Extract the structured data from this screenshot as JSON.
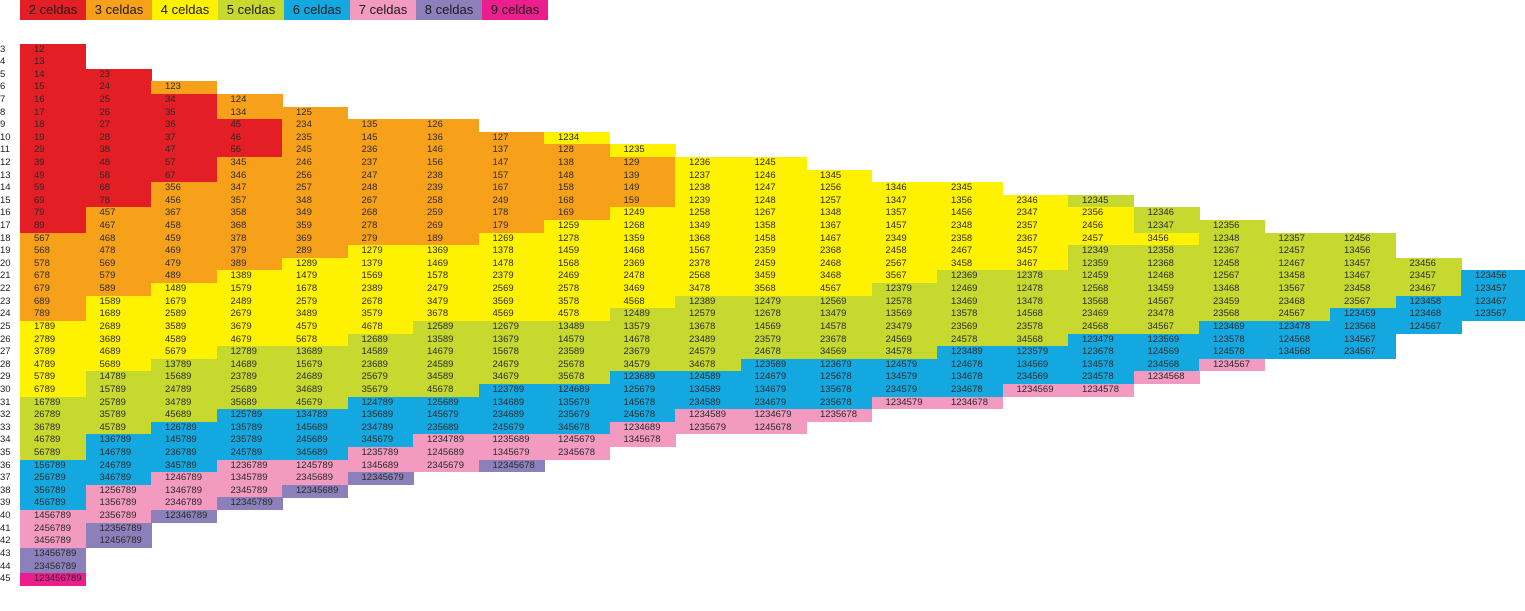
{
  "legend": [
    {
      "label": "2 celdas",
      "color": "#e31e24"
    },
    {
      "label": "3 celdas",
      "color": "#f7a11a"
    },
    {
      "label": "4 celdas",
      "color": "#fff200"
    },
    {
      "label": "5 celdas",
      "color": "#c7d92f"
    },
    {
      "label": "6 celdas",
      "color": "#14a8e0"
    },
    {
      "label": "7 celdas",
      "color": "#f39ac0"
    },
    {
      "label": "8 celdas",
      "color": "#8c80bb"
    },
    {
      "label": "9 celdas",
      "color": "#ec1d8d"
    }
  ],
  "rows": [
    {
      "sum": "3",
      "cells": [
        "12"
      ]
    },
    {
      "sum": "4",
      "cells": [
        "13"
      ]
    },
    {
      "sum": "5",
      "cells": [
        "14",
        "23"
      ]
    },
    {
      "sum": "6",
      "cells": [
        "15",
        "24",
        "123"
      ]
    },
    {
      "sum": "7",
      "cells": [
        "16",
        "25",
        "34",
        "124"
      ]
    },
    {
      "sum": "8",
      "cells": [
        "17",
        "26",
        "35",
        "134",
        "125"
      ]
    },
    {
      "sum": "9",
      "cells": [
        "18",
        "27",
        "36",
        "45",
        "234",
        "135",
        "126"
      ]
    },
    {
      "sum": "10",
      "cells": [
        "19",
        "28",
        "37",
        "46",
        "235",
        "145",
        "136",
        "127",
        "1234"
      ]
    },
    {
      "sum": "11",
      "cells": [
        "29",
        "38",
        "47",
        "56",
        "245",
        "236",
        "146",
        "137",
        "128",
        "1235"
      ]
    },
    {
      "sum": "12",
      "cells": [
        "39",
        "48",
        "57",
        "345",
        "246",
        "237",
        "156",
        "147",
        "138",
        "129",
        "1236",
        "1245"
      ]
    },
    {
      "sum": "13",
      "cells": [
        "49",
        "58",
        "67",
        "346",
        "256",
        "247",
        "238",
        "157",
        "148",
        "139",
        "1237",
        "1246",
        "1345"
      ]
    },
    {
      "sum": "14",
      "cells": [
        "59",
        "68",
        "356",
        "347",
        "257",
        "248",
        "239",
        "167",
        "158",
        "149",
        "1238",
        "1247",
        "1256",
        "1346",
        "2345"
      ]
    },
    {
      "sum": "15",
      "cells": [
        "69",
        "78",
        "456",
        "357",
        "348",
        "267",
        "258",
        "249",
        "168",
        "159",
        "1239",
        "1248",
        "1257",
        "1347",
        "1356",
        "2346",
        "12345"
      ]
    },
    {
      "sum": "16",
      "cells": [
        "79",
        "457",
        "367",
        "358",
        "349",
        "268",
        "259",
        "178",
        "169",
        "1249",
        "1258",
        "1267",
        "1348",
        "1357",
        "1456",
        "2347",
        "2356",
        "12346"
      ]
    },
    {
      "sum": "17",
      "cells": [
        "89",
        "467",
        "458",
        "368",
        "359",
        "278",
        "269",
        "179",
        "1259",
        "1268",
        "1349",
        "1358",
        "1367",
        "1457",
        "2348",
        "2357",
        "2456",
        "12347",
        "12356"
      ]
    },
    {
      "sum": "18",
      "cells": [
        "567",
        "468",
        "459",
        "378",
        "369",
        "279",
        "189",
        "1269",
        "1278",
        "1359",
        "1368",
        "1458",
        "1467",
        "2349",
        "2358",
        "2367",
        "2457",
        "3456",
        "12348",
        "12357",
        "12456"
      ]
    },
    {
      "sum": "19",
      "cells": [
        "568",
        "478",
        "469",
        "379",
        "289",
        "1279",
        "1369",
        "1378",
        "1459",
        "1468",
        "1567",
        "2359",
        "2368",
        "2458",
        "2467",
        "3457",
        "12349",
        "12358",
        "12367",
        "12457",
        "13456"
      ]
    },
    {
      "sum": "20",
      "cells": [
        "578",
        "569",
        "479",
        "389",
        "1289",
        "1379",
        "1469",
        "1478",
        "1568",
        "2369",
        "2378",
        "2459",
        "2468",
        "2567",
        "3458",
        "3467",
        "12359",
        "12368",
        "12458",
        "12467",
        "13457",
        "23456"
      ]
    },
    {
      "sum": "21",
      "cells": [
        "678",
        "579",
        "489",
        "1389",
        "1479",
        "1569",
        "1578",
        "2379",
        "2469",
        "2478",
        "2568",
        "3459",
        "3468",
        "3567",
        "12369",
        "12378",
        "12459",
        "12468",
        "12567",
        "13458",
        "13467",
        "23457",
        "123456"
      ]
    },
    {
      "sum": "22",
      "cells": [
        "679",
        "589",
        "1489",
        "1579",
        "1678",
        "2389",
        "2479",
        "2569",
        "2578",
        "3469",
        "3478",
        "3568",
        "4567",
        "12379",
        "12469",
        "12478",
        "12568",
        "13459",
        "13468",
        "13567",
        "23458",
        "23467",
        "123457"
      ]
    },
    {
      "sum": "23",
      "cells": [
        "689",
        "1589",
        "1679",
        "2489",
        "2579",
        "2678",
        "3479",
        "3569",
        "3578",
        "4568",
        "12389",
        "12479",
        "12569",
        "12578",
        "13469",
        "13478",
        "13568",
        "14567",
        "23459",
        "23468",
        "23567",
        "123458",
        "123467"
      ]
    },
    {
      "sum": "24",
      "cells": [
        "789",
        "1689",
        "2589",
        "2679",
        "3489",
        "3579",
        "3678",
        "4569",
        "4578",
        "12489",
        "12579",
        "12678",
        "13479",
        "13569",
        "13578",
        "14568",
        "23469",
        "23478",
        "23568",
        "24567",
        "123459",
        "123468",
        "123567"
      ]
    },
    {
      "sum": "25",
      "cells": [
        "1789",
        "2689",
        "3589",
        "3679",
        "4579",
        "4678",
        "12589",
        "12679",
        "13489",
        "13579",
        "13678",
        "14569",
        "14578",
        "23479",
        "23569",
        "23578",
        "24568",
        "34567",
        "123469",
        "123478",
        "123568",
        "124567"
      ]
    },
    {
      "sum": "26",
      "cells": [
        "2789",
        "3689",
        "4589",
        "4679",
        "5678",
        "12689",
        "13589",
        "13679",
        "14579",
        "14678",
        "23489",
        "23579",
        "23678",
        "24569",
        "24578",
        "34568",
        "123479",
        "123569",
        "123578",
        "124568",
        "134567"
      ]
    },
    {
      "sum": "27",
      "cells": [
        "3789",
        "4689",
        "5679",
        "12789",
        "13689",
        "14589",
        "14679",
        "15678",
        "23589",
        "23679",
        "24579",
        "24678",
        "34569",
        "34578",
        "123489",
        "123579",
        "123678",
        "124569",
        "124578",
        "134568",
        "234567"
      ]
    },
    {
      "sum": "28",
      "cells": [
        "4789",
        "5689",
        "13789",
        "14689",
        "15679",
        "23689",
        "24589",
        "24679",
        "25678",
        "34579",
        "34678",
        "123589",
        "123679",
        "124579",
        "124678",
        "134569",
        "134578",
        "234568",
        "1234567"
      ]
    },
    {
      "sum": "29",
      "cells": [
        "5789",
        "14789",
        "15689",
        "23789",
        "24689",
        "25679",
        "34589",
        "34679",
        "35678",
        "123689",
        "124589",
        "124679",
        "125678",
        "134579",
        "134678",
        "234569",
        "234578",
        "1234568"
      ]
    },
    {
      "sum": "30",
      "cells": [
        "6789",
        "15789",
        "24789",
        "25689",
        "34689",
        "35679",
        "45678",
        "123789",
        "124689",
        "125679",
        "134589",
        "134679",
        "135678",
        "234579",
        "234678",
        "1234569",
        "1234578"
      ]
    },
    {
      "sum": "31",
      "cells": [
        "16789",
        "25789",
        "34789",
        "35689",
        "45679",
        "124789",
        "125689",
        "134689",
        "135679",
        "145678",
        "234589",
        "234679",
        "235678",
        "1234579",
        "1234678"
      ]
    },
    {
      "sum": "32",
      "cells": [
        "26789",
        "35789",
        "45689",
        "125789",
        "134789",
        "135689",
        "145679",
        "234689",
        "235679",
        "245678",
        "1234589",
        "1234679",
        "1235678"
      ]
    },
    {
      "sum": "33",
      "cells": [
        "36789",
        "45789",
        "126789",
        "135789",
        "145689",
        "234789",
        "235689",
        "245679",
        "345678",
        "1234689",
        "1235679",
        "1245678"
      ]
    },
    {
      "sum": "34",
      "cells": [
        "46789",
        "136789",
        "145789",
        "235789",
        "245689",
        "345679",
        "1234789",
        "1235689",
        "1245679",
        "1345678"
      ]
    },
    {
      "sum": "35",
      "cells": [
        "56789",
        "146789",
        "236789",
        "245789",
        "345689",
        "1235789",
        "1245689",
        "1345679",
        "2345678"
      ]
    },
    {
      "sum": "36",
      "cells": [
        "156789",
        "246789",
        "345789",
        "1236789",
        "1245789",
        "1345689",
        "2345679",
        "12345678"
      ]
    },
    {
      "sum": "37",
      "cells": [
        "256789",
        "346789",
        "1246789",
        "1345789",
        "2345689",
        "12345679"
      ]
    },
    {
      "sum": "38",
      "cells": [
        "356789",
        "1256789",
        "1346789",
        "2345789",
        "12345689"
      ]
    },
    {
      "sum": "39",
      "cells": [
        "456789",
        "1356789",
        "2346789",
        "12345789"
      ]
    },
    {
      "sum": "40",
      "cells": [
        "1456789",
        "2356789",
        "12346789"
      ]
    },
    {
      "sum": "41",
      "cells": [
        "2456789",
        "12356789"
      ]
    },
    {
      "sum": "42",
      "cells": [
        "3456789",
        "12456789"
      ]
    },
    {
      "sum": "43",
      "cells": [
        "13456789"
      ]
    },
    {
      "sum": "44",
      "cells": [
        "23456789"
      ]
    },
    {
      "sum": "45",
      "cells": [
        "123456789"
      ]
    }
  ]
}
